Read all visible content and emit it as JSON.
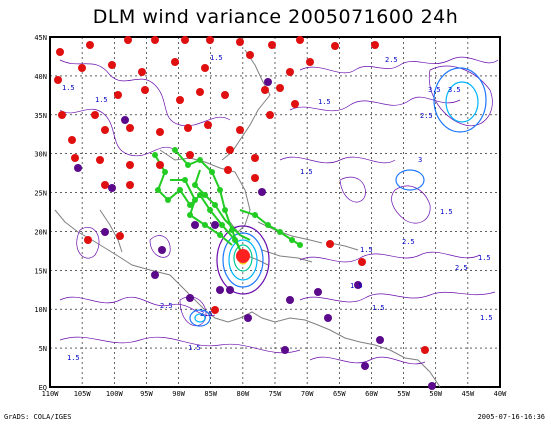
{
  "title": "DLM wind variance 2005071600 24h",
  "footer_left": "GrADS: COLA/IGES",
  "footer_right": "2005-07-16-16:36",
  "lon_labels": [
    "110W",
    "105W",
    "100W",
    "95W",
    "90W",
    "85W",
    "80W",
    "75W",
    "70W",
    "65W",
    "60W",
    "55W",
    "50W",
    "45W",
    "40W"
  ],
  "lat_labels": [
    "EQ",
    "5N",
    "10N",
    "15N",
    "20N",
    "25N",
    "30N",
    "35N",
    "40N",
    "45N"
  ],
  "contour_labels": [
    "1.5",
    "1.5",
    "1.5",
    "2.5",
    "3.5",
    "3.5",
    "1.5",
    "2.5",
    "1.5",
    "3",
    "2.5",
    "1.5",
    "1.5",
    "2.5",
    "1.5",
    "1.5",
    "1.5",
    "2.5",
    "1.5",
    "1.5",
    "2.5",
    "1.5"
  ],
  "colors": {
    "contour": "#6a0dad",
    "coast": "#808080",
    "track": "#22cc22",
    "red_marker": "#e01010",
    "purple_marker": "#5a0a8a",
    "center_red": "#ff2020",
    "high1": "#00b4ff",
    "high2": "#00c896",
    "high3": "#1e78ff"
  }
}
